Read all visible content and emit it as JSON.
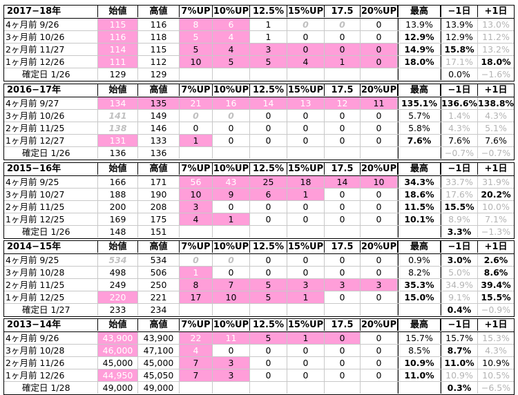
{
  "headers": [
    "始値",
    "高値",
    "7%UP",
    "10%UP",
    "12.5%",
    "15%UP",
    "17.5",
    "20%UP",
    "最高",
    "−1日",
    "+1日"
  ],
  "sections": [
    {
      "year": "2017−18年",
      "rows": [
        {
          "label": "4ヶ月前  9/26",
          "cells": [
            {
              "v": "115",
              "s": "pinktxt"
            },
            {
              "v": "116"
            },
            {
              "v": "8",
              "s": "pinktxt"
            },
            {
              "v": "6",
              "s": "pinktxt"
            },
            {
              "v": "1"
            },
            {
              "v": "0",
              "s": "gb"
            },
            {
              "v": "0",
              "s": "gb"
            },
            {
              "v": "0"
            },
            {
              "v": "13.9%"
            },
            {
              "v": "13.9%"
            },
            {
              "v": "13.0%",
              "s": "ghost"
            }
          ]
        },
        {
          "label": "3ヶ月前  10/26",
          "cells": [
            {
              "v": "116",
              "s": "pinktxt"
            },
            {
              "v": "118"
            },
            {
              "v": "5",
              "s": "pinktxt"
            },
            {
              "v": "4",
              "s": "pinktxt"
            },
            {
              "v": "1"
            },
            {
              "v": "0"
            },
            {
              "v": "0"
            },
            {
              "v": "0"
            },
            {
              "v": "12.9%",
              "s": "b"
            },
            {
              "v": "12.9%"
            },
            {
              "v": "11.2%",
              "s": "ghost"
            }
          ]
        },
        {
          "label": "2ヶ月前  11/27",
          "cells": [
            {
              "v": "114",
              "s": "pinktxt"
            },
            {
              "v": "115"
            },
            {
              "v": "5"
            },
            {
              "v": "4"
            },
            {
              "v": "3"
            },
            {
              "v": "0"
            },
            {
              "v": "0"
            },
            {
              "v": "0"
            },
            {
              "v": "14.9%",
              "s": "b"
            },
            {
              "v": "15.8%",
              "s": "b"
            },
            {
              "v": "13.2%",
              "s": "ghost"
            }
          ]
        },
        {
          "label": "1ヶ月前  12/26",
          "cells": [
            {
              "v": "111",
              "s": "pinktxt"
            },
            {
              "v": "112"
            },
            {
              "v": "10"
            },
            {
              "v": "5"
            },
            {
              "v": "5"
            },
            {
              "v": "4"
            },
            {
              "v": "1"
            },
            {
              "v": "0"
            },
            {
              "v": "18.0%",
              "s": "b"
            },
            {
              "v": "17.1%",
              "s": "ghost"
            },
            {
              "v": "18.0%",
              "s": "b"
            }
          ]
        },
        {
          "label": "確定日  1/26",
          "cells": [
            {
              "v": "129"
            },
            {
              "v": "129"
            },
            {
              "v": ""
            },
            {
              "v": ""
            },
            {
              "v": ""
            },
            {
              "v": ""
            },
            {
              "v": ""
            },
            {
              "v": ""
            },
            {
              "v": ""
            },
            {
              "v": "0.0%"
            },
            {
              "v": "−1.6%",
              "s": "ghost"
            }
          ]
        }
      ]
    },
    {
      "year": "2016−17年",
      "rows": [
        {
          "label": "4ヶ月前  9/27",
          "cells": [
            {
              "v": "134",
              "s": "pinktxt"
            },
            {
              "v": "135"
            },
            {
              "v": "21",
              "s": "pinktxt"
            },
            {
              "v": "16",
              "s": "pinktxt"
            },
            {
              "v": "14",
              "s": "pinktxt"
            },
            {
              "v": "13",
              "s": "pinktxt"
            },
            {
              "v": "12",
              "s": "pinktxt"
            },
            {
              "v": "11"
            },
            {
              "v": "135.1%",
              "s": "b"
            },
            {
              "v": "136.6%",
              "s": "b"
            },
            {
              "v": "138.8%",
              "s": "b"
            }
          ]
        },
        {
          "label": "3ヶ月前  10/26",
          "cells": [
            {
              "v": "141",
              "s": "gb"
            },
            {
              "v": "149"
            },
            {
              "v": "0",
              "s": "gb"
            },
            {
              "v": "0",
              "s": "gb"
            },
            {
              "v": "0"
            },
            {
              "v": "0"
            },
            {
              "v": "0"
            },
            {
              "v": "0"
            },
            {
              "v": "5.7%"
            },
            {
              "v": "1.4%",
              "s": "ghost"
            },
            {
              "v": "4.3%",
              "s": "ghost"
            }
          ]
        },
        {
          "label": "2ヶ月前  11/25",
          "cells": [
            {
              "v": "138",
              "s": "gb"
            },
            {
              "v": "146"
            },
            {
              "v": "0"
            },
            {
              "v": "0"
            },
            {
              "v": "0"
            },
            {
              "v": "0"
            },
            {
              "v": "0"
            },
            {
              "v": "0"
            },
            {
              "v": "5.8%"
            },
            {
              "v": "4.3%",
              "s": "ghost"
            },
            {
              "v": "5.1%",
              "s": "ghost"
            }
          ]
        },
        {
          "label": "1ヶ月前  12/27",
          "cells": [
            {
              "v": "131",
              "s": "pinktxt"
            },
            {
              "v": "133"
            },
            {
              "v": "1"
            },
            {
              "v": "0"
            },
            {
              "v": "0"
            },
            {
              "v": "0"
            },
            {
              "v": "0"
            },
            {
              "v": "0"
            },
            {
              "v": "7.6%",
              "s": "b"
            },
            {
              "v": "7.6%"
            },
            {
              "v": "7.6%"
            }
          ]
        },
        {
          "label": "確定日  1/26",
          "cells": [
            {
              "v": "136"
            },
            {
              "v": "136"
            },
            {
              "v": ""
            },
            {
              "v": ""
            },
            {
              "v": ""
            },
            {
              "v": ""
            },
            {
              "v": ""
            },
            {
              "v": ""
            },
            {
              "v": ""
            },
            {
              "v": "−0.7%",
              "s": "ghost"
            },
            {
              "v": "−0.7%",
              "s": "ghost"
            }
          ]
        }
      ]
    },
    {
      "year": "2015−16年",
      "rows": [
        {
          "label": "4ヶ月前  9/25",
          "cells": [
            {
              "v": "166"
            },
            {
              "v": "171"
            },
            {
              "v": "56",
              "s": "pinktxt"
            },
            {
              "v": "43",
              "s": "pinktxt"
            },
            {
              "v": "25"
            },
            {
              "v": "18"
            },
            {
              "v": "14"
            },
            {
              "v": "10"
            },
            {
              "v": "34.3%",
              "s": "b"
            },
            {
              "v": "33.7%",
              "s": "ghost"
            },
            {
              "v": "31.9%",
              "s": "ghost"
            }
          ]
        },
        {
          "label": "3ヶ月前  10/27",
          "cells": [
            {
              "v": "188"
            },
            {
              "v": "190"
            },
            {
              "v": "10"
            },
            {
              "v": "9"
            },
            {
              "v": "6"
            },
            {
              "v": "1"
            },
            {
              "v": "0"
            },
            {
              "v": "0"
            },
            {
              "v": "18.6%",
              "s": "b"
            },
            {
              "v": "17.6%",
              "s": "ghost"
            },
            {
              "v": "20.2%",
              "s": "b"
            }
          ]
        },
        {
          "label": "2ヶ月前  11/25",
          "cells": [
            {
              "v": "200"
            },
            {
              "v": "208"
            },
            {
              "v": "3"
            },
            {
              "v": "0"
            },
            {
              "v": "0"
            },
            {
              "v": "0"
            },
            {
              "v": "0"
            },
            {
              "v": "0"
            },
            {
              "v": "11.5%",
              "s": "b"
            },
            {
              "v": "15.5%",
              "s": "b"
            },
            {
              "v": "10.0%",
              "s": "ghost"
            }
          ]
        },
        {
          "label": "1ヶ月前  12/25",
          "cells": [
            {
              "v": "169"
            },
            {
              "v": "175"
            },
            {
              "v": "4"
            },
            {
              "v": "1"
            },
            {
              "v": "0"
            },
            {
              "v": "0"
            },
            {
              "v": "0"
            },
            {
              "v": "0"
            },
            {
              "v": "10.1%",
              "s": "b"
            },
            {
              "v": "8.9%",
              "s": "ghost"
            },
            {
              "v": "7.1%",
              "s": "ghost"
            }
          ]
        },
        {
          "label": "確定日  1/26",
          "cells": [
            {
              "v": "148"
            },
            {
              "v": "151"
            },
            {
              "v": ""
            },
            {
              "v": ""
            },
            {
              "v": ""
            },
            {
              "v": ""
            },
            {
              "v": ""
            },
            {
              "v": ""
            },
            {
              "v": ""
            },
            {
              "v": "3.3%",
              "s": "b"
            },
            {
              "v": "−1.3%",
              "s": "ghost"
            }
          ]
        }
      ]
    },
    {
      "year": "2014−15年",
      "rows": [
        {
          "label": "4ヶ月前  9/25",
          "cells": [
            {
              "v": "534",
              "s": "gb"
            },
            {
              "v": "534"
            },
            {
              "v": "0",
              "s": "gb"
            },
            {
              "v": "0",
              "s": "gb"
            },
            {
              "v": "0"
            },
            {
              "v": "0"
            },
            {
              "v": "0"
            },
            {
              "v": "0"
            },
            {
              "v": "0.9%"
            },
            {
              "v": "3.0%",
              "s": "b"
            },
            {
              "v": "2.6%",
              "s": "b"
            }
          ]
        },
        {
          "label": "3ヶ月前  10/28",
          "cells": [
            {
              "v": "498"
            },
            {
              "v": "506"
            },
            {
              "v": "1",
              "s": "pinktxt"
            },
            {
              "v": "0"
            },
            {
              "v": "0"
            },
            {
              "v": "0"
            },
            {
              "v": "0"
            },
            {
              "v": "0"
            },
            {
              "v": "8.2%"
            },
            {
              "v": "5.0%",
              "s": "ghost"
            },
            {
              "v": "8.6%",
              "s": "b"
            }
          ]
        },
        {
          "label": "2ヶ月前  11/25",
          "cells": [
            {
              "v": "249"
            },
            {
              "v": "250"
            },
            {
              "v": "8"
            },
            {
              "v": "7"
            },
            {
              "v": "5"
            },
            {
              "v": "3"
            },
            {
              "v": "3"
            },
            {
              "v": "3"
            },
            {
              "v": "35.3%",
              "s": "b"
            },
            {
              "v": "34.9%",
              "s": "ghost"
            },
            {
              "v": "39.4%",
              "s": "b"
            }
          ]
        },
        {
          "label": "1ヶ月前  12/25",
          "cells": [
            {
              "v": "220",
              "s": "pinktxt"
            },
            {
              "v": "221"
            },
            {
              "v": "17"
            },
            {
              "v": "10"
            },
            {
              "v": "5"
            },
            {
              "v": "1"
            },
            {
              "v": "0"
            },
            {
              "v": "0"
            },
            {
              "v": "15.0%",
              "s": "b"
            },
            {
              "v": "9.1%",
              "s": "ghost"
            },
            {
              "v": "15.5%",
              "s": "b"
            }
          ]
        },
        {
          "label": "確定日  1/27",
          "cells": [
            {
              "v": "233"
            },
            {
              "v": "234"
            },
            {
              "v": ""
            },
            {
              "v": ""
            },
            {
              "v": ""
            },
            {
              "v": ""
            },
            {
              "v": ""
            },
            {
              "v": ""
            },
            {
              "v": ""
            },
            {
              "v": "0.4%",
              "s": "b"
            },
            {
              "v": "−0.9%",
              "s": "ghost"
            }
          ]
        }
      ]
    },
    {
      "year": "2013−14年",
      "rows": [
        {
          "label": "4ヶ月前  9/26",
          "cells": [
            {
              "v": "43,900",
              "s": "pinktxt"
            },
            {
              "v": "43,900"
            },
            {
              "v": "22",
              "s": "pinktxt"
            },
            {
              "v": "11",
              "s": "pinktxt"
            },
            {
              "v": "5"
            },
            {
              "v": "1"
            },
            {
              "v": "0"
            },
            {
              "v": "0"
            },
            {
              "v": "15.7%"
            },
            {
              "v": "15.7%"
            },
            {
              "v": "15.3%",
              "s": "ghost"
            }
          ]
        },
        {
          "label": "3ヶ月前  10/28",
          "cells": [
            {
              "v": "46,000",
              "s": "pinktxt"
            },
            {
              "v": "47,100"
            },
            {
              "v": "4",
              "s": "pinktxt"
            },
            {
              "v": "0"
            },
            {
              "v": "0"
            },
            {
              "v": "0"
            },
            {
              "v": "0"
            },
            {
              "v": "0"
            },
            {
              "v": "8.5%"
            },
            {
              "v": "8.7%",
              "s": "b"
            },
            {
              "v": "4.3%",
              "s": "ghost"
            }
          ]
        },
        {
          "label": "2ヶ月前  11/26",
          "cells": [
            {
              "v": "45,000"
            },
            {
              "v": "45,000"
            },
            {
              "v": "7"
            },
            {
              "v": "3"
            },
            {
              "v": "0"
            },
            {
              "v": "0"
            },
            {
              "v": "0"
            },
            {
              "v": "0"
            },
            {
              "v": "10.9%",
              "s": "b"
            },
            {
              "v": "11.0%",
              "s": "b"
            },
            {
              "v": "10.9%"
            }
          ]
        },
        {
          "label": "1ヶ月前  12/26",
          "cells": [
            {
              "v": "44,950",
              "s": "pinktxt"
            },
            {
              "v": "45,050"
            },
            {
              "v": "7"
            },
            {
              "v": "3"
            },
            {
              "v": "0"
            },
            {
              "v": "0"
            },
            {
              "v": "0"
            },
            {
              "v": "0"
            },
            {
              "v": "11.0%",
              "s": "b"
            },
            {
              "v": "10.9%",
              "s": "ghost"
            },
            {
              "v": "10.5%",
              "s": "ghost"
            }
          ]
        },
        {
          "label": "確定日  1/28",
          "cells": [
            {
              "v": "49,000"
            },
            {
              "v": "49,000"
            },
            {
              "v": ""
            },
            {
              "v": ""
            },
            {
              "v": ""
            },
            {
              "v": ""
            },
            {
              "v": ""
            },
            {
              "v": ""
            },
            {
              "v": ""
            },
            {
              "v": "0.3%",
              "s": "b"
            },
            {
              "v": "−6.5%",
              "s": "ghost"
            }
          ]
        }
      ]
    }
  ]
}
